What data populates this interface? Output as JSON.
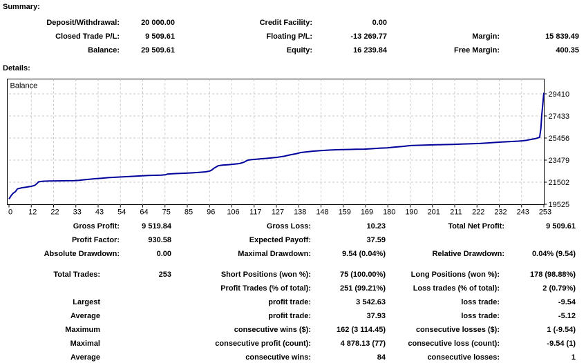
{
  "summary": {
    "title": "Summary:",
    "rows": [
      [
        "Deposit/Withdrawal:",
        "20 000.00",
        "Credit Facility:",
        "0.00",
        "",
        ""
      ],
      [
        "Closed Trade P/L:",
        "9 509.61",
        "Floating P/L:",
        "-13 269.77",
        "Margin:",
        "15 839.49"
      ],
      [
        "Balance:",
        "29 509.61",
        "Equity:",
        "16 239.84",
        "Free Margin:",
        "400.35"
      ]
    ]
  },
  "details": {
    "title": "Details:"
  },
  "stats": {
    "rows": [
      [
        "Gross Profit:",
        "9 519.84",
        "Gross Loss:",
        "10.23",
        "Total Net Profit:",
        "9 509.61"
      ],
      [
        "Profit Factor:",
        "930.58",
        "Expected Payoff:",
        "37.59",
        "",
        ""
      ],
      [
        "Absolute Drawdown:",
        "0.00",
        "Maximal Drawdown:",
        "9.54 (0.04%)",
        "Relative Drawdown:",
        "0.04% (9.54)"
      ]
    ]
  },
  "trades": {
    "rows": [
      [
        "Total Trades:",
        "253",
        "Short Positions (won %):",
        "75 (100.00%)",
        "Long Positions (won %):",
        "178 (98.88%)"
      ],
      [
        "",
        "",
        "Profit Trades (% of total):",
        "251 (99.21%)",
        "Loss trades (% of total):",
        "2 (0.79%)"
      ],
      [
        "Largest",
        "",
        "profit trade:",
        "3 542.63",
        "loss trade:",
        "-9.54"
      ],
      [
        "Average",
        "",
        "profit trade:",
        "37.93",
        "loss trade:",
        "-5.12"
      ],
      [
        "Maximum",
        "",
        "consecutive wins ($):",
        "162 (3 114.45)",
        "consecutive losses ($):",
        "1 (-9.54)"
      ],
      [
        "Maximal",
        "",
        "consecutive profit (count):",
        "4 878.13 (77)",
        "consecutive loss (count):",
        "-9.54 (1)"
      ],
      [
        "Average",
        "",
        "consecutive wins:",
        "84",
        "consecutive losses:",
        "1"
      ]
    ]
  },
  "chart_data": {
    "type": "line",
    "legend": "Balance",
    "x_ticks": [
      0,
      12,
      22,
      33,
      43,
      54,
      64,
      75,
      85,
      96,
      106,
      117,
      127,
      138,
      148,
      159,
      169,
      180,
      190,
      201,
      211,
      222,
      232,
      243,
      253
    ],
    "y_ticks": [
      29410,
      27433,
      25456,
      23479,
      21502,
      19525
    ],
    "x_range": [
      0,
      253
    ],
    "y_range": [
      19525,
      30660
    ],
    "grid": true,
    "legend_position": "top-left",
    "line_color": "#00009B",
    "grid_color": "#C9C9C9",
    "border_color": "#000000",
    "series": [
      {
        "name": "Balance",
        "points": [
          [
            0,
            20000
          ],
          [
            1,
            20300
          ],
          [
            2,
            20520
          ],
          [
            3,
            20650
          ],
          [
            4,
            20900
          ],
          [
            6,
            21000
          ],
          [
            8,
            21060
          ],
          [
            10,
            21110
          ],
          [
            12,
            21200
          ],
          [
            13,
            21340
          ],
          [
            14,
            21530
          ],
          [
            16,
            21590
          ],
          [
            19,
            21610
          ],
          [
            23,
            21620
          ],
          [
            27,
            21630
          ],
          [
            31,
            21640
          ],
          [
            33,
            21660
          ],
          [
            35,
            21710
          ],
          [
            38,
            21770
          ],
          [
            41,
            21820
          ],
          [
            44,
            21860
          ],
          [
            47,
            21910
          ],
          [
            50,
            21940
          ],
          [
            54,
            21980
          ],
          [
            57,
            22010
          ],
          [
            60,
            22040
          ],
          [
            63,
            22070
          ],
          [
            66,
            22100
          ],
          [
            69,
            22120
          ],
          [
            72,
            22140
          ],
          [
            74,
            22160
          ],
          [
            75,
            22230
          ],
          [
            78,
            22270
          ],
          [
            81,
            22290
          ],
          [
            84,
            22310
          ],
          [
            87,
            22340
          ],
          [
            90,
            22380
          ],
          [
            93,
            22430
          ],
          [
            95,
            22500
          ],
          [
            96,
            22600
          ],
          [
            97,
            22760
          ],
          [
            99,
            22980
          ],
          [
            101,
            23030
          ],
          [
            104,
            23070
          ],
          [
            106,
            23110
          ],
          [
            109,
            23170
          ],
          [
            111,
            23280
          ],
          [
            113,
            23480
          ],
          [
            115,
            23520
          ],
          [
            117,
            23560
          ],
          [
            120,
            23610
          ],
          [
            123,
            23660
          ],
          [
            127,
            23730
          ],
          [
            130,
            23820
          ],
          [
            133,
            23950
          ],
          [
            136,
            24060
          ],
          [
            138,
            24160
          ],
          [
            141,
            24220
          ],
          [
            144,
            24280
          ],
          [
            148,
            24340
          ],
          [
            152,
            24380
          ],
          [
            156,
            24410
          ],
          [
            160,
            24430
          ],
          [
            164,
            24450
          ],
          [
            168,
            24460
          ],
          [
            171,
            24490
          ],
          [
            175,
            24540
          ],
          [
            179,
            24580
          ],
          [
            182,
            24640
          ],
          [
            186,
            24700
          ],
          [
            190,
            24780
          ],
          [
            194,
            24810
          ],
          [
            198,
            24830
          ],
          [
            202,
            24850
          ],
          [
            206,
            24870
          ],
          [
            210,
            24890
          ],
          [
            214,
            24920
          ],
          [
            218,
            24940
          ],
          [
            222,
            24960
          ],
          [
            226,
            25010
          ],
          [
            230,
            25060
          ],
          [
            234,
            25110
          ],
          [
            238,
            25150
          ],
          [
            241,
            25180
          ],
          [
            243,
            25210
          ],
          [
            245,
            25260
          ],
          [
            247,
            25330
          ],
          [
            249,
            25400
          ],
          [
            250,
            25460
          ],
          [
            251,
            25520
          ],
          [
            251.6,
            26300
          ],
          [
            252,
            27450
          ],
          [
            252.4,
            28300
          ],
          [
            252.7,
            28900
          ],
          [
            253,
            29510
          ]
        ]
      }
    ]
  }
}
